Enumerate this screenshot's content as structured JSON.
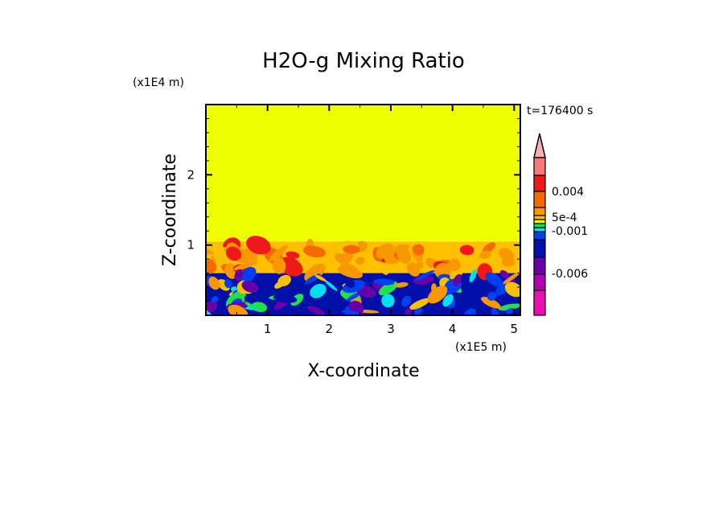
{
  "chart_data": {
    "type": "heatmap",
    "title": "H2O-g Mixing Ratio",
    "xlabel": "X-coordinate",
    "ylabel": "Z-coordinate",
    "x_scale_label": "(x1E5 m)",
    "y_scale_label": "(x1E4 m)",
    "time_label": "t=176400 s",
    "xlim": [
      0,
      5.1
    ],
    "ylim": [
      0,
      3.0
    ],
    "x_ticks": [
      "1",
      "2",
      "3",
      "4",
      "5"
    ],
    "y_ticks": [
      "1",
      "2"
    ],
    "colorbar": {
      "extend": "max",
      "labels": [
        "0.004",
        "5e-4",
        "-0.001",
        "-0.006"
      ],
      "colors_top_to_bottom": [
        "#f77c78",
        "#f01818",
        "#f56a00",
        "#f79800",
        "#f7c000",
        "#f2f200",
        "#21e04e",
        "#00e0f0",
        "#0040f0",
        "#0010a8",
        "#6800a8",
        "#b000b0",
        "#e810b0"
      ],
      "extend_color": "#f7b0b0"
    },
    "field_regions": [
      {
        "z_range": [
          1.05,
          3.0
        ],
        "color": "#f0ff00"
      },
      {
        "z_range": [
          0.6,
          1.05
        ],
        "color": "#ffc000"
      },
      {
        "z_range": [
          0.0,
          0.6
        ],
        "color": "#0010a8"
      }
    ]
  }
}
